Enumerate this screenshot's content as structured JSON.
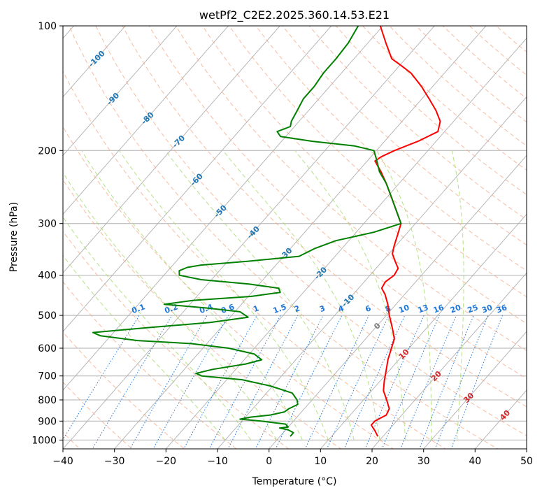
{
  "chart_data": {
    "type": "line",
    "subtype": "skew-t log-p diagram",
    "title": "wetPf2_C2E2.2025.360.14.53.E21",
    "xlabel": "Temperature (°C)",
    "ylabel": "Pressure (hPa)",
    "xlim": [
      -40,
      50
    ],
    "ylim": [
      1050,
      100
    ],
    "x_ticks": [
      "−40",
      "−30",
      "−20",
      "−10",
      "0",
      "10",
      "20",
      "30",
      "40",
      "50"
    ],
    "y_ticks": [
      "1000",
      "900",
      "800",
      "700",
      "600",
      "500",
      "400",
      "300",
      "200",
      "100"
    ],
    "grid": true,
    "colors": {
      "temperature": "#ff0000",
      "dewpoint": "#008000",
      "isotherm_grid": "#b0b0b0",
      "dry_adiabat": "#f4a582",
      "moist_adiabat": "#a6d96a",
      "mixing_ratio": "#1f78d8",
      "isotherm_label": "#1f77b4",
      "isotherm_label_hot": "#d62728",
      "isotherm_label_zero": "#7f7f7f"
    },
    "series": [
      {
        "name": "Temperature",
        "color": "#ff0000",
        "points": [
          {
            "p": 980,
            "t": 19.0
          },
          {
            "p": 950,
            "t": 17.5
          },
          {
            "p": 920,
            "t": 15.8
          },
          {
            "p": 900,
            "t": 15.8
          },
          {
            "p": 870,
            "t": 17.0
          },
          {
            "p": 840,
            "t": 16.5
          },
          {
            "p": 800,
            "t": 14.5
          },
          {
            "p": 760,
            "t": 12.3
          },
          {
            "p": 720,
            "t": 10.8
          },
          {
            "p": 680,
            "t": 9.4
          },
          {
            "p": 640,
            "t": 7.9
          },
          {
            "p": 600,
            "t": 6.6
          },
          {
            "p": 570,
            "t": 5.6
          },
          {
            "p": 540,
            "t": 3.6
          },
          {
            "p": 500,
            "t": 0.6
          },
          {
            "p": 470,
            "t": -1.6
          },
          {
            "p": 445,
            "t": -3.8
          },
          {
            "p": 430,
            "t": -5.5
          },
          {
            "p": 415,
            "t": -5.9
          },
          {
            "p": 400,
            "t": -5.3
          },
          {
            "p": 385,
            "t": -5.7
          },
          {
            "p": 370,
            "t": -7.5
          },
          {
            "p": 355,
            "t": -9.3
          },
          {
            "p": 340,
            "t": -10.3
          },
          {
            "p": 320,
            "t": -11.5
          },
          {
            "p": 300,
            "t": -12.8
          },
          {
            "p": 280,
            "t": -15.8
          },
          {
            "p": 260,
            "t": -19.0
          },
          {
            "p": 240,
            "t": -22.5
          },
          {
            "p": 225,
            "t": -25.5
          },
          {
            "p": 212,
            "t": -28.5
          },
          {
            "p": 207,
            "t": -28.0
          },
          {
            "p": 200,
            "t": -26.5
          },
          {
            "p": 190,
            "t": -23.5
          },
          {
            "p": 180,
            "t": -21.3
          },
          {
            "p": 170,
            "t": -22.6
          },
          {
            "p": 160,
            "t": -25.3
          },
          {
            "p": 150,
            "t": -28.6
          },
          {
            "p": 140,
            "t": -32.2
          },
          {
            "p": 130,
            "t": -36.5
          },
          {
            "p": 125,
            "t": -39.5
          },
          {
            "p": 120,
            "t": -42.7
          },
          {
            "p": 110,
            "t": -46.5
          },
          {
            "p": 100,
            "t": -50.5
          }
        ]
      },
      {
        "name": "Dewpoint",
        "color": "#008000",
        "points": [
          {
            "p": 980,
            "t": 2.0
          },
          {
            "p": 960,
            "t": 2.0
          },
          {
            "p": 945,
            "t": 0.5
          },
          {
            "p": 935,
            "t": -1.5
          },
          {
            "p": 930,
            "t": 0.0
          },
          {
            "p": 915,
            "t": -1.0
          },
          {
            "p": 900,
            "t": -6.3
          },
          {
            "p": 890,
            "t": -10.7
          },
          {
            "p": 880,
            "t": -9.0
          },
          {
            "p": 870,
            "t": -5.5
          },
          {
            "p": 855,
            "t": -3.3
          },
          {
            "p": 840,
            "t": -3.0
          },
          {
            "p": 820,
            "t": -2.0
          },
          {
            "p": 800,
            "t": -2.9
          },
          {
            "p": 770,
            "t": -5.0
          },
          {
            "p": 740,
            "t": -10.5
          },
          {
            "p": 715,
            "t": -17.0
          },
          {
            "p": 700,
            "t": -25.5
          },
          {
            "p": 690,
            "t": -27.0
          },
          {
            "p": 675,
            "t": -24.5
          },
          {
            "p": 655,
            "t": -19.0
          },
          {
            "p": 640,
            "t": -16.6
          },
          {
            "p": 620,
            "t": -19.0
          },
          {
            "p": 600,
            "t": -25.0
          },
          {
            "p": 585,
            "t": -33.0
          },
          {
            "p": 575,
            "t": -44.0
          },
          {
            "p": 560,
            "t": -52.0
          },
          {
            "p": 550,
            "t": -54.0
          },
          {
            "p": 535,
            "t": -44.0
          },
          {
            "p": 520,
            "t": -33.0
          },
          {
            "p": 505,
            "t": -26.5
          },
          {
            "p": 490,
            "t": -29.0
          },
          {
            "p": 480,
            "t": -36.0
          },
          {
            "p": 470,
            "t": -45.0
          },
          {
            "p": 460,
            "t": -40.0
          },
          {
            "p": 450,
            "t": -29.5
          },
          {
            "p": 440,
            "t": -24.5
          },
          {
            "p": 430,
            "t": -25.5
          },
          {
            "p": 420,
            "t": -32.0
          },
          {
            "p": 410,
            "t": -42.0
          },
          {
            "p": 400,
            "t": -47.0
          },
          {
            "p": 390,
            "t": -47.8
          },
          {
            "p": 383,
            "t": -46.8
          },
          {
            "p": 378,
            "t": -44.5
          },
          {
            "p": 370,
            "t": -36.0
          },
          {
            "p": 360,
            "t": -27.0
          },
          {
            "p": 345,
            "t": -25.3
          },
          {
            "p": 330,
            "t": -22.5
          },
          {
            "p": 315,
            "t": -16.6
          },
          {
            "p": 300,
            "t": -12.8
          },
          {
            "p": 280,
            "t": -15.8
          },
          {
            "p": 260,
            "t": -19.0
          },
          {
            "p": 240,
            "t": -22.5
          },
          {
            "p": 225,
            "t": -25.8
          },
          {
            "p": 210,
            "t": -28.5
          },
          {
            "p": 200,
            "t": -30.5
          },
          {
            "p": 195,
            "t": -35.0
          },
          {
            "p": 190,
            "t": -44.0
          },
          {
            "p": 185,
            "t": -51.0
          },
          {
            "p": 180,
            "t": -52.5
          },
          {
            "p": 175,
            "t": -50.8
          },
          {
            "p": 170,
            "t": -51.5
          },
          {
            "p": 160,
            "t": -52.2
          },
          {
            "p": 150,
            "t": -53.0
          },
          {
            "p": 140,
            "t": -53.0
          },
          {
            "p": 130,
            "t": -53.5
          },
          {
            "p": 120,
            "t": -53.5
          },
          {
            "p": 110,
            "t": -53.8
          },
          {
            "p": 100,
            "t": -54.8
          }
        ]
      }
    ],
    "isotherm_labels": [
      "-100",
      "-90",
      "-80",
      "-70",
      "-60",
      "-50",
      "-40",
      "-30",
      "-20",
      "-10",
      "0",
      "10",
      "20",
      "30",
      "40"
    ],
    "mixing_ratio_labels": [
      "0.1",
      "0.2",
      "0.4",
      "0.6",
      "1",
      "1.5",
      "2",
      "3",
      "4",
      "6",
      "8",
      "10",
      "13",
      "16",
      "20",
      "25",
      "30",
      "36"
    ],
    "mixing_ratio_values": [
      0.1,
      0.2,
      0.4,
      0.6,
      1,
      1.5,
      2,
      3,
      4,
      6,
      8,
      10,
      13,
      16,
      20,
      25,
      30,
      36
    ],
    "dry_adiabats_theta_c": [
      -50,
      -40,
      -30,
      -20,
      -10,
      0,
      10,
      20,
      30,
      40,
      50,
      60,
      70,
      80,
      90,
      100,
      110,
      120,
      130,
      140,
      150,
      160,
      170,
      180,
      190,
      200
    ],
    "moist_adiabats_start_c": [
      -10,
      -5,
      0,
      5,
      10,
      15,
      20,
      25,
      30,
      35
    ]
  }
}
